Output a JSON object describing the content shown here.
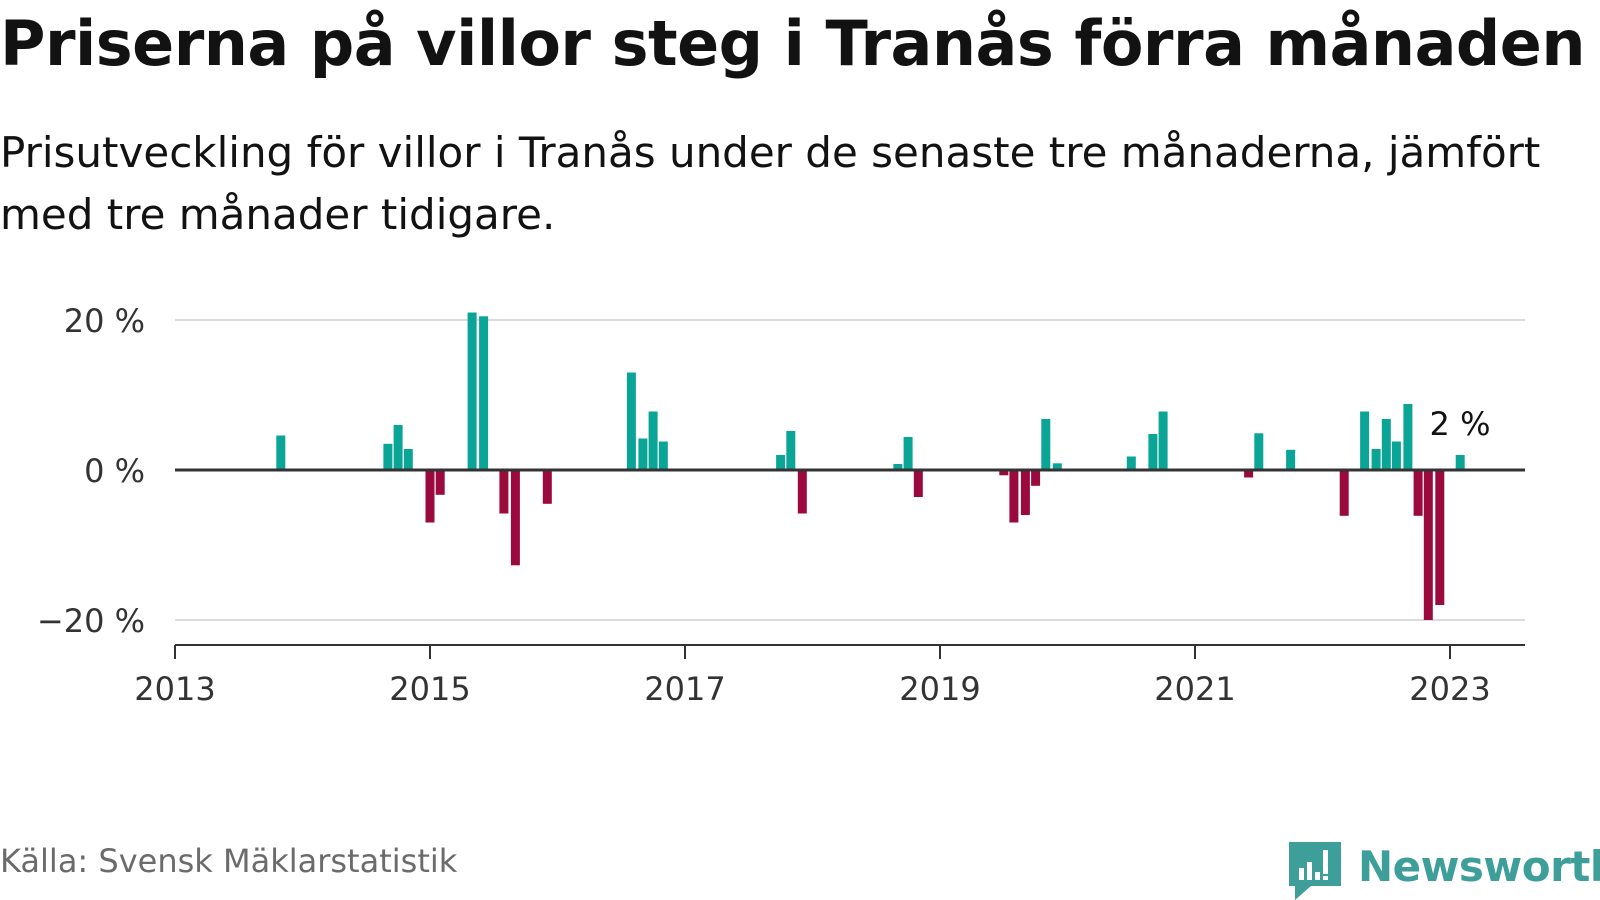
{
  "title": "Priserna på villor steg i Tranås förra månaden",
  "subtitle": "Prisutveckling för villor i Tranås under de senaste tre månaderna, jämfört med tre månader tidigare.",
  "source": "Källa: Svensk Mäklarstatistik",
  "brand": "Newsworthy",
  "colors": {
    "positive": "#0aa596",
    "negative": "#9a0a3c",
    "brand": "#3d9e9a",
    "grid": "#dcdcdc",
    "axis": "#333333"
  },
  "chart_data": {
    "type": "bar",
    "xlabel": "",
    "ylabel": "",
    "ylim": [
      -23,
      22
    ],
    "yticks": [
      {
        "value": 20,
        "label": "20 %"
      },
      {
        "value": 0,
        "label": "0 %"
      },
      {
        "value": -20,
        "label": "−20 %"
      }
    ],
    "xticks": [
      {
        "value": 2013.0,
        "label": "2013"
      },
      {
        "value": 2015.0,
        "label": "2015"
      },
      {
        "value": 2017.0,
        "label": "2017"
      },
      {
        "value": 2019.0,
        "label": "2019"
      },
      {
        "value": 2021.0,
        "label": "2021"
      },
      {
        "value": 2023.0,
        "label": "2023"
      }
    ],
    "xlim": [
      2013.0,
      2023.6
    ],
    "annotation": {
      "x": 2023.08,
      "text": "2 %"
    },
    "series": [
      {
        "name": "Prisutveckling",
        "points": [
          {
            "x": 2013.83,
            "value": 4.6
          },
          {
            "x": 2014.67,
            "value": 3.5
          },
          {
            "x": 2014.75,
            "value": 6.0
          },
          {
            "x": 2014.83,
            "value": 2.8
          },
          {
            "x": 2015.0,
            "value": -7.0
          },
          {
            "x": 2015.08,
            "value": -3.3
          },
          {
            "x": 2015.33,
            "value": 21.0
          },
          {
            "x": 2015.42,
            "value": 20.5
          },
          {
            "x": 2015.58,
            "value": -5.8
          },
          {
            "x": 2015.67,
            "value": -12.7
          },
          {
            "x": 2015.92,
            "value": -4.5
          },
          {
            "x": 2016.58,
            "value": 13.0
          },
          {
            "x": 2016.67,
            "value": 4.2
          },
          {
            "x": 2016.75,
            "value": 7.8
          },
          {
            "x": 2016.83,
            "value": 3.8
          },
          {
            "x": 2017.75,
            "value": 2.0
          },
          {
            "x": 2017.83,
            "value": 5.2
          },
          {
            "x": 2017.92,
            "value": -5.8
          },
          {
            "x": 2018.67,
            "value": 0.8
          },
          {
            "x": 2018.75,
            "value": 4.4
          },
          {
            "x": 2018.83,
            "value": -3.6
          },
          {
            "x": 2019.5,
            "value": -0.7
          },
          {
            "x": 2019.58,
            "value": -7.0
          },
          {
            "x": 2019.67,
            "value": -6.0
          },
          {
            "x": 2019.75,
            "value": -2.1
          },
          {
            "x": 2019.83,
            "value": 6.8
          },
          {
            "x": 2019.92,
            "value": 0.9
          },
          {
            "x": 2020.5,
            "value": 1.8
          },
          {
            "x": 2020.67,
            "value": 4.8
          },
          {
            "x": 2020.75,
            "value": 7.8
          },
          {
            "x": 2021.42,
            "value": -1.0
          },
          {
            "x": 2021.5,
            "value": 4.9
          },
          {
            "x": 2021.75,
            "value": 2.7
          },
          {
            "x": 2022.17,
            "value": -6.1
          },
          {
            "x": 2022.33,
            "value": 7.8
          },
          {
            "x": 2022.42,
            "value": 2.8
          },
          {
            "x": 2022.5,
            "value": 6.8
          },
          {
            "x": 2022.58,
            "value": 3.8
          },
          {
            "x": 2022.67,
            "value": 8.8
          },
          {
            "x": 2022.75,
            "value": -6.1
          },
          {
            "x": 2022.83,
            "value": -20.0
          },
          {
            "x": 2022.92,
            "value": -18.0
          },
          {
            "x": 2023.08,
            "value": 2.0
          }
        ]
      }
    ]
  }
}
